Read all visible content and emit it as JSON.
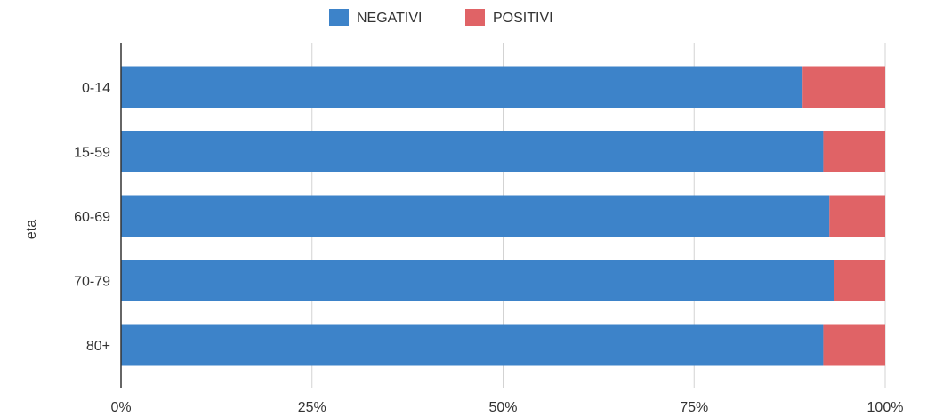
{
  "chart_data": {
    "type": "bar",
    "orientation": "horizontal",
    "stacked": "percent",
    "categories": [
      "0-14",
      "15-59",
      "60-69",
      "70-79",
      "80+"
    ],
    "series": [
      {
        "name": "NEGATIVI",
        "color": "#3d83c9",
        "values": [
          89.2,
          91.9,
          92.7,
          93.3,
          91.9
        ]
      },
      {
        "name": "POSITIVI",
        "color": "#e06366",
        "values": [
          10.8,
          8.1,
          7.3,
          6.7,
          8.1
        ]
      }
    ],
    "xlabel": "",
    "ylabel": "eta",
    "xlim": [
      0,
      100
    ],
    "xticks": [
      "0%",
      "25%",
      "50%",
      "75%",
      "100%"
    ],
    "grid": true,
    "legend_position": "top"
  }
}
